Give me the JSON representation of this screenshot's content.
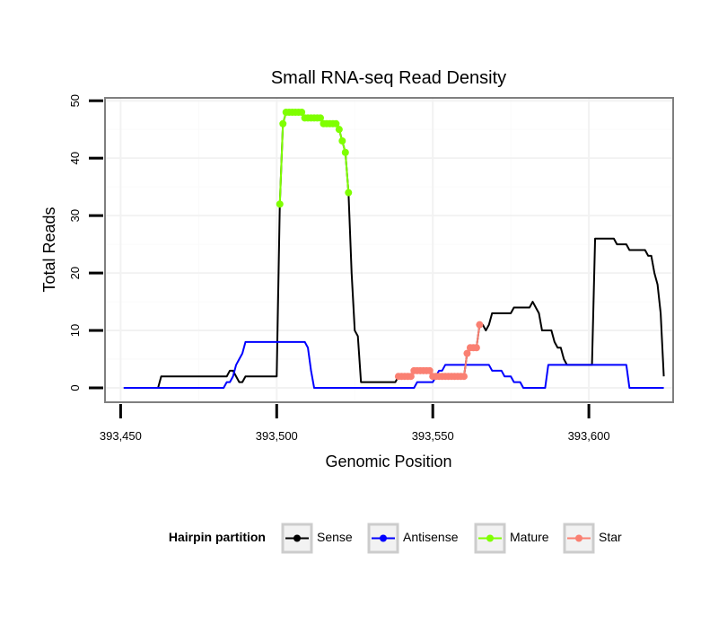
{
  "chart_data": {
    "type": "line",
    "title": "Small RNA-seq Read Density",
    "xlabel": "Genomic Position",
    "ylabel": "Total Reads",
    "xlim": [
      393445,
      393627
    ],
    "ylim": [
      -2.5,
      50.5
    ],
    "xticks": [
      393450,
      393500,
      393550,
      393600
    ],
    "xtick_labels": [
      "393,450",
      "393,500",
      "393,550",
      "393,600"
    ],
    "yticks": [
      0,
      10,
      20,
      30,
      40,
      50
    ],
    "ytick_labels": [
      "0",
      "10",
      "20",
      "30",
      "40",
      "50"
    ],
    "grid": true,
    "legend": {
      "title": "Hairpin partition",
      "position": "bottom",
      "entries": [
        {
          "label": "Sense",
          "color": "#000000"
        },
        {
          "label": "Antisense",
          "color": "#0000ff"
        },
        {
          "label": "Mature",
          "color": "#7fff00"
        },
        {
          "label": "Star",
          "color": "#fa8072"
        }
      ]
    },
    "series": [
      {
        "name": "Sense",
        "color": "#000000",
        "points": [
          [
            393451,
            0
          ],
          [
            393462,
            0
          ],
          [
            393463,
            2
          ],
          [
            393484,
            2
          ],
          [
            393485,
            3
          ],
          [
            393486,
            3
          ],
          [
            393487,
            2
          ],
          [
            393488,
            1
          ],
          [
            393489,
            1
          ],
          [
            393490,
            2
          ],
          [
            393499,
            2
          ],
          [
            393500,
            2
          ],
          [
            393501,
            32
          ],
          [
            393502,
            46
          ],
          [
            393503,
            48
          ],
          [
            393508,
            48
          ],
          [
            393509,
            47
          ],
          [
            393514,
            47
          ],
          [
            393515,
            46
          ],
          [
            393519,
            46
          ],
          [
            393520,
            45
          ],
          [
            393521,
            43
          ],
          [
            393522,
            41
          ],
          [
            393523,
            34
          ],
          [
            393524,
            20
          ],
          [
            393525,
            10
          ],
          [
            393526,
            9
          ],
          [
            393527,
            1
          ],
          [
            393538,
            1
          ],
          [
            393539,
            2
          ],
          [
            393543,
            2
          ],
          [
            393544,
            3
          ],
          [
            393549,
            3
          ],
          [
            393550,
            2
          ],
          [
            393560,
            2
          ],
          [
            393561,
            6
          ],
          [
            393562,
            7
          ],
          [
            393564,
            7
          ],
          [
            393565,
            11
          ],
          [
            393566,
            11
          ],
          [
            393567,
            10
          ],
          [
            393568,
            11
          ],
          [
            393569,
            13
          ],
          [
            393575,
            13
          ],
          [
            393576,
            14
          ],
          [
            393581,
            14
          ],
          [
            393582,
            15
          ],
          [
            393583,
            14
          ],
          [
            393584,
            13
          ],
          [
            393585,
            10
          ],
          [
            393588,
            10
          ],
          [
            393589,
            8
          ],
          [
            393590,
            7
          ],
          [
            393591,
            7
          ],
          [
            393592,
            5
          ],
          [
            393593,
            4
          ],
          [
            393601,
            4
          ],
          [
            393602,
            26
          ],
          [
            393608,
            26
          ],
          [
            393609,
            25
          ],
          [
            393612,
            25
          ],
          [
            393613,
            24
          ],
          [
            393618,
            24
          ],
          [
            393619,
            23
          ],
          [
            393620,
            23
          ],
          [
            393621,
            20
          ],
          [
            393622,
            18
          ],
          [
            393623,
            13
          ],
          [
            393624,
            2
          ]
        ]
      },
      {
        "name": "Antisense",
        "color": "#0000ff",
        "points": [
          [
            393451,
            0
          ],
          [
            393483,
            0
          ],
          [
            393484,
            1
          ],
          [
            393485,
            1
          ],
          [
            393486,
            2
          ],
          [
            393487,
            4
          ],
          [
            393488,
            5
          ],
          [
            393489,
            6
          ],
          [
            393490,
            8
          ],
          [
            393509,
            8
          ],
          [
            393510,
            7
          ],
          [
            393511,
            3
          ],
          [
            393512,
            0
          ],
          [
            393544,
            0
          ],
          [
            393545,
            1
          ],
          [
            393550,
            1
          ],
          [
            393551,
            2
          ],
          [
            393552,
            3
          ],
          [
            393553,
            3
          ],
          [
            393554,
            4
          ],
          [
            393568,
            4
          ],
          [
            393569,
            3
          ],
          [
            393572,
            3
          ],
          [
            393573,
            2
          ],
          [
            393575,
            2
          ],
          [
            393576,
            1
          ],
          [
            393578,
            1
          ],
          [
            393579,
            0
          ],
          [
            393586,
            0
          ],
          [
            393587,
            4
          ],
          [
            393612,
            4
          ],
          [
            393613,
            0
          ],
          [
            393624,
            0
          ]
        ]
      },
      {
        "name": "Mature",
        "color": "#7fff00",
        "points": [
          [
            393501,
            32
          ],
          [
            393502,
            46
          ],
          [
            393503,
            48
          ],
          [
            393504,
            48
          ],
          [
            393505,
            48
          ],
          [
            393506,
            48
          ],
          [
            393507,
            48
          ],
          [
            393508,
            48
          ],
          [
            393509,
            47
          ],
          [
            393510,
            47
          ],
          [
            393511,
            47
          ],
          [
            393512,
            47
          ],
          [
            393513,
            47
          ],
          [
            393514,
            47
          ],
          [
            393515,
            46
          ],
          [
            393516,
            46
          ],
          [
            393517,
            46
          ],
          [
            393518,
            46
          ],
          [
            393519,
            46
          ],
          [
            393520,
            45
          ],
          [
            393521,
            43
          ],
          [
            393522,
            41
          ],
          [
            393523,
            34
          ]
        ]
      },
      {
        "name": "Star",
        "color": "#fa8072",
        "points": [
          [
            393539,
            2
          ],
          [
            393540,
            2
          ],
          [
            393541,
            2
          ],
          [
            393542,
            2
          ],
          [
            393543,
            2
          ],
          [
            393544,
            3
          ],
          [
            393545,
            3
          ],
          [
            393546,
            3
          ],
          [
            393547,
            3
          ],
          [
            393548,
            3
          ],
          [
            393549,
            3
          ],
          [
            393550,
            2
          ],
          [
            393551,
            2
          ],
          [
            393552,
            2
          ],
          [
            393553,
            2
          ],
          [
            393554,
            2
          ],
          [
            393555,
            2
          ],
          [
            393556,
            2
          ],
          [
            393557,
            2
          ],
          [
            393558,
            2
          ],
          [
            393559,
            2
          ],
          [
            393560,
            2
          ],
          [
            393561,
            6
          ],
          [
            393562,
            7
          ],
          [
            393563,
            7
          ],
          [
            393564,
            7
          ],
          [
            393565,
            11
          ]
        ]
      }
    ]
  }
}
